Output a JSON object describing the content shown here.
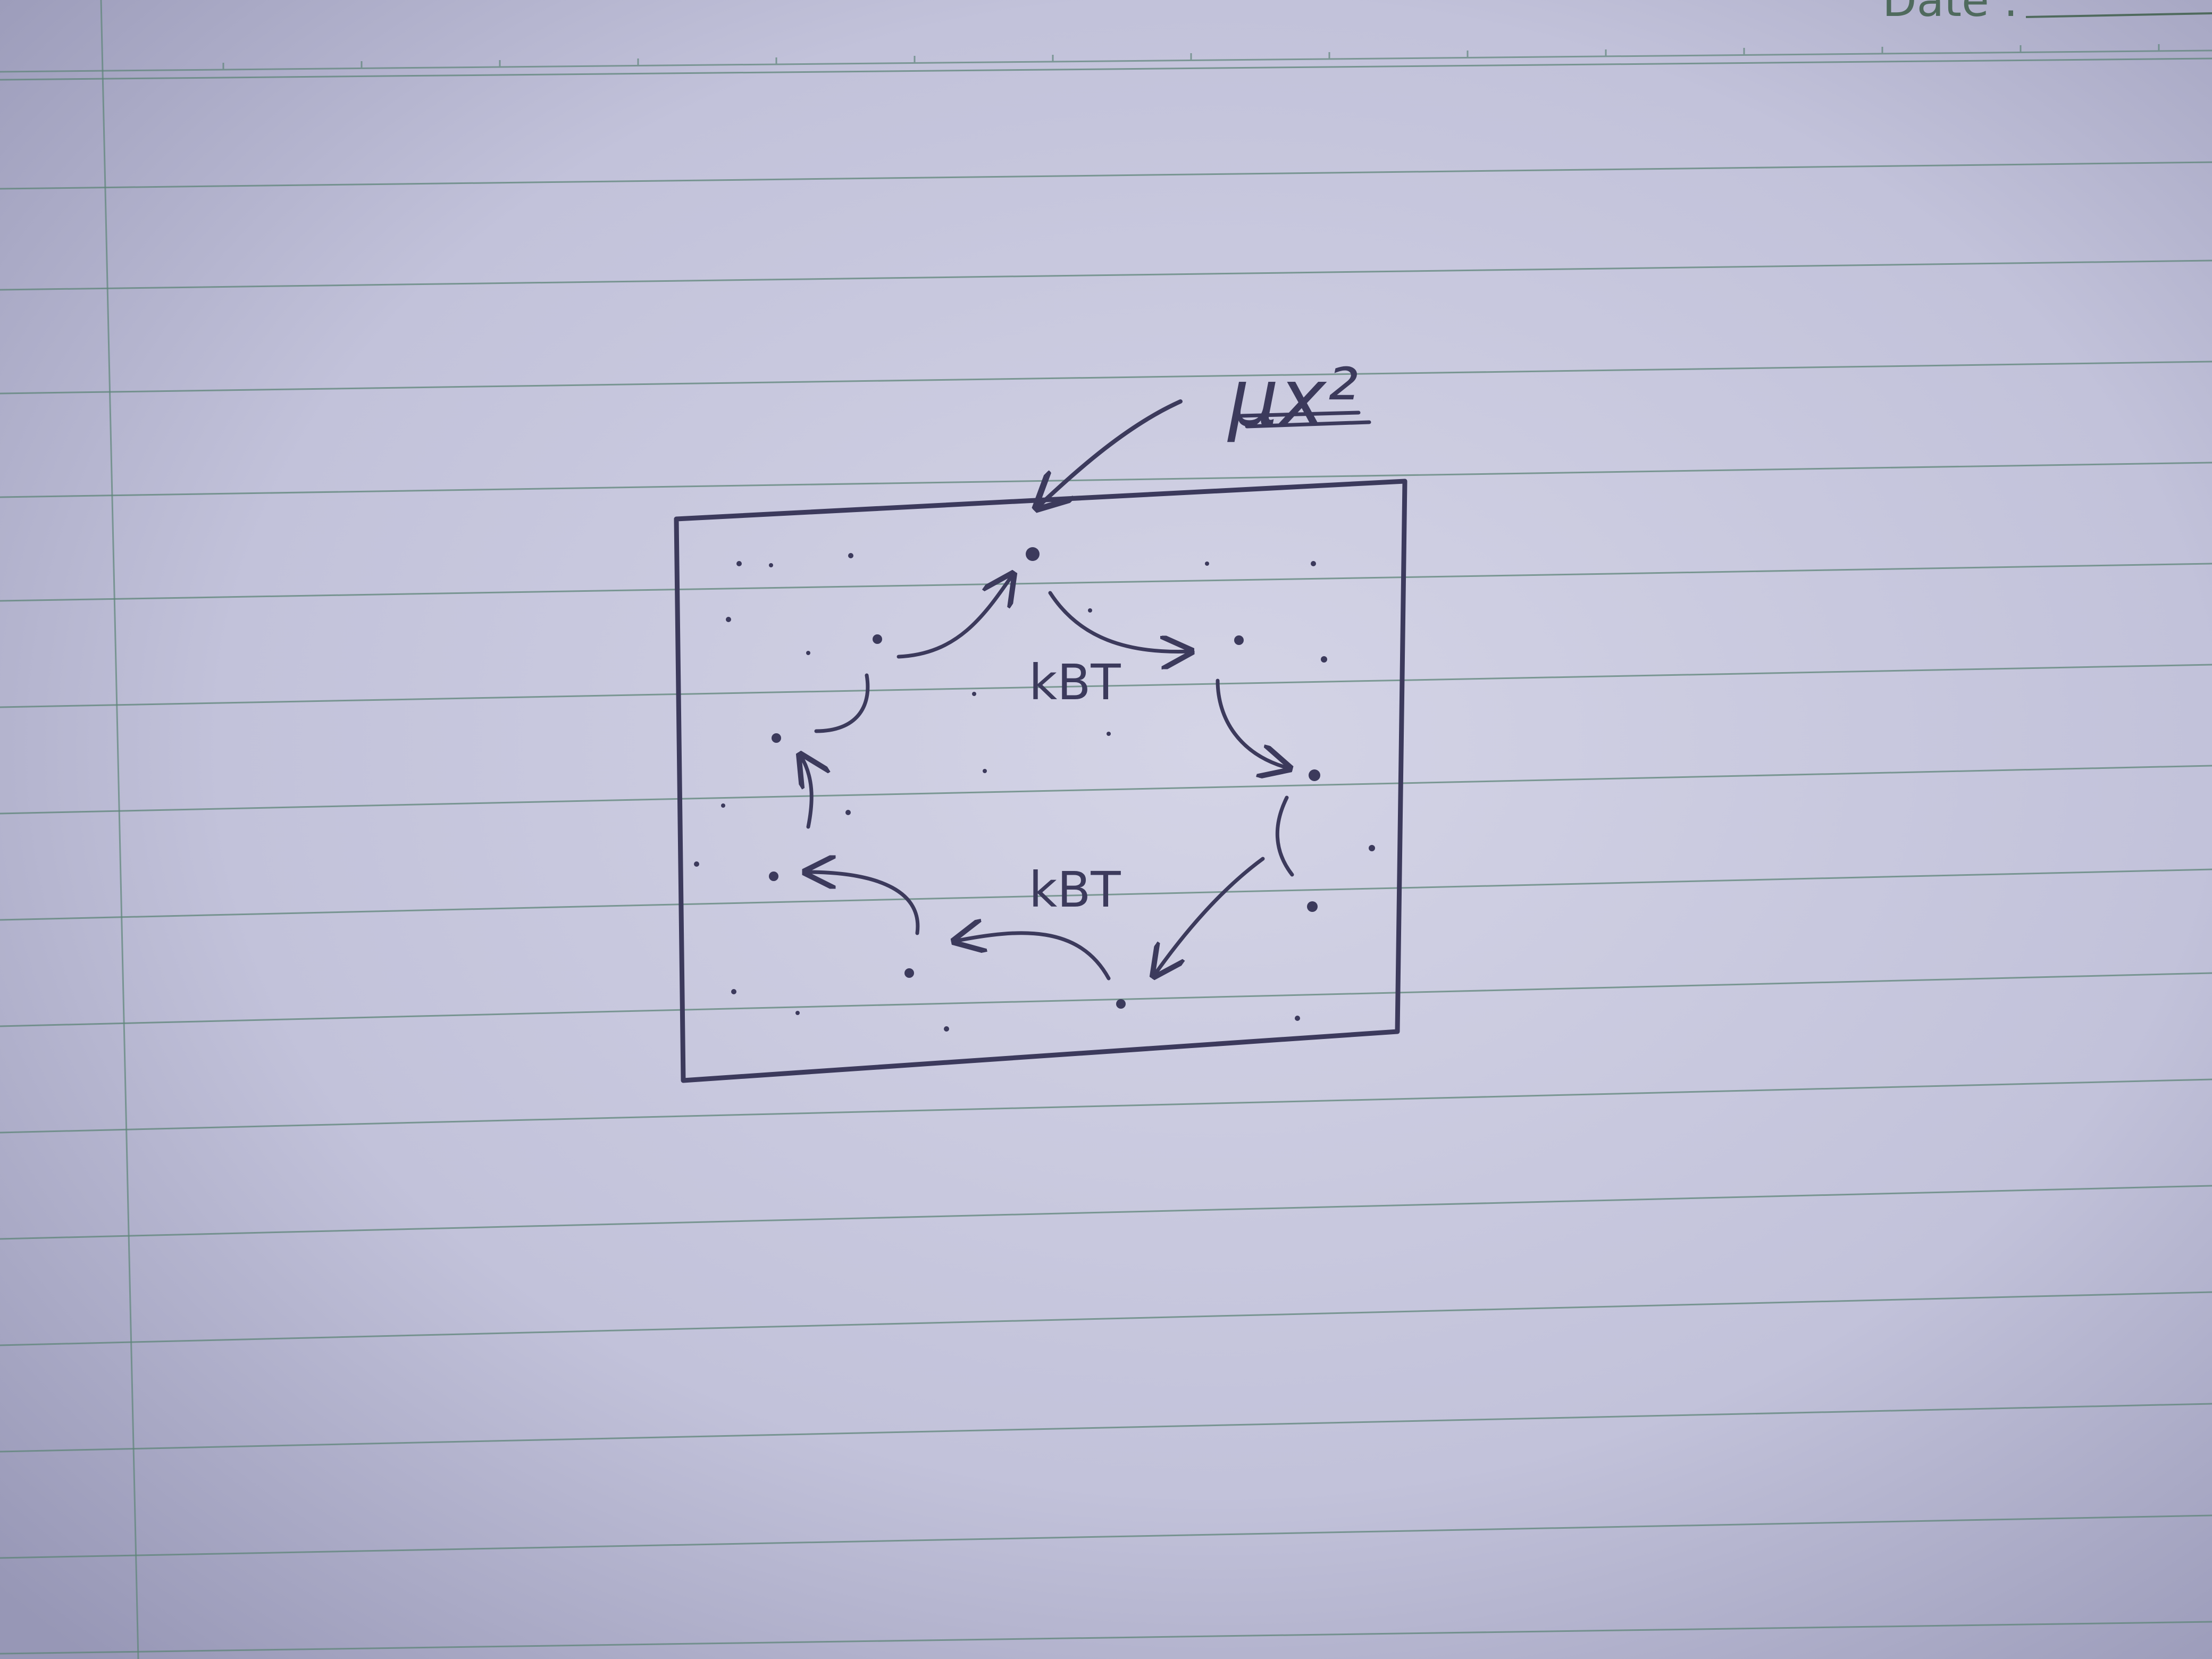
{
  "page": {
    "header": {
      "date_label": "Date :"
    }
  },
  "sketch": {
    "annotation_label": "μx²",
    "rate_label_top": "kBT",
    "rate_label_bottom": "kBT"
  },
  "colors": {
    "paper": "#c6c6dc",
    "paper_shadow": "#8f8fb0",
    "ruling": "#5d8478",
    "ink": "#3c3a5c"
  }
}
